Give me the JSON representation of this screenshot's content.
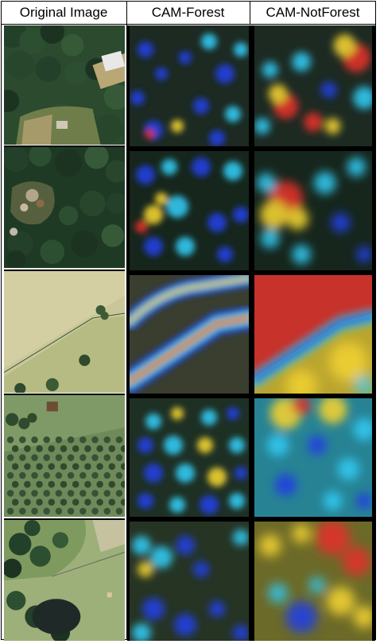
{
  "table": {
    "headers": [
      "Original Image",
      "CAM-Forest",
      "CAM-NotForest"
    ]
  },
  "rows": [
    {
      "original": "aerial-forest-with-house-and-clearing",
      "forest_cam": "sparse-hot-spots",
      "notforest_cam": "hot-on-house-and-clearing"
    },
    {
      "original": "aerial-dense-forest-with-debris",
      "forest_cam": "medium-activation",
      "notforest_cam": "hot-on-debris"
    },
    {
      "original": "aerial-field-with-tree-line",
      "forest_cam": "activation-on-tree-line",
      "notforest_cam": "hot-on-field"
    },
    {
      "original": "aerial-orchard-rows",
      "forest_cam": "activation-on-rows",
      "notforest_cam": "broad-activation"
    },
    {
      "original": "aerial-field-trees-and-pond",
      "forest_cam": "activation-on-trees",
      "notforest_cam": "hot-on-field"
    }
  ],
  "colors": {
    "border": "#000000",
    "jet_hot": "#e0302a",
    "jet_warm": "#f0d030",
    "jet_mid": "#30c8f0",
    "jet_cold": "#2040e0"
  }
}
